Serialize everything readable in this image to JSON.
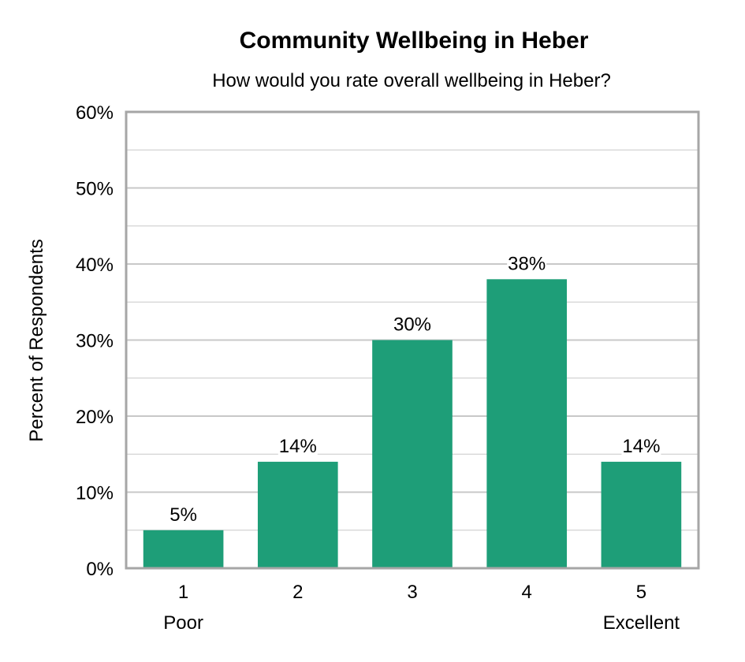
{
  "chart_data": {
    "type": "bar",
    "title": "Community Wellbeing in Heber",
    "subtitle": "How would you rate overall wellbeing in Heber?",
    "ylabel": "Percent of Respondents",
    "xlabel": "",
    "categories": [
      "1",
      "2",
      "3",
      "4",
      "5"
    ],
    "category_sublabels": [
      "Poor",
      "",
      "",
      "",
      "Excellent"
    ],
    "values": [
      5,
      14,
      30,
      38,
      14
    ],
    "data_labels": [
      "5%",
      "14%",
      "30%",
      "38%",
      "14%"
    ],
    "ylim": [
      0,
      60
    ],
    "y_ticks": [
      0,
      10,
      20,
      30,
      40,
      50,
      60
    ],
    "y_tick_labels": [
      "0%",
      "10%",
      "20%",
      "30%",
      "40%",
      "50%",
      "60%"
    ],
    "y_minor_step": 5,
    "grid": true,
    "bar_color": "#1e9e78",
    "gridline_color": "#c8c8c8",
    "frame_color": "#a6a6a6"
  }
}
